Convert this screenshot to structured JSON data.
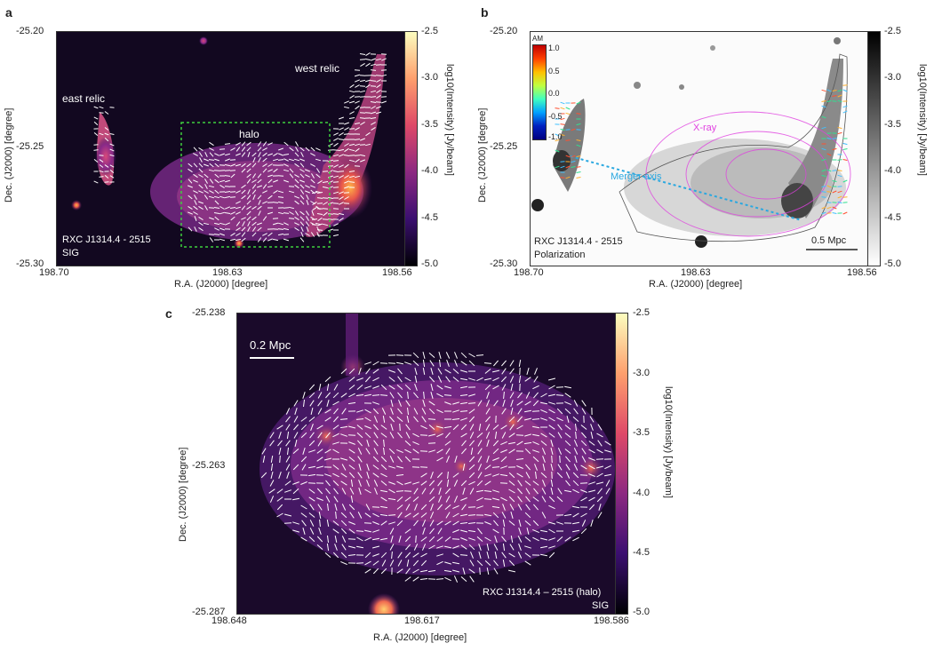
{
  "panels": {
    "a": {
      "letter": "a",
      "ra_ticks": [
        "198.70",
        "198.63",
        "198.56"
      ],
      "dec_ticks": [
        "-25.20",
        "-25.25",
        "-25.30"
      ],
      "xlabel": "R.A. (J2000) [degree]",
      "ylabel": "Dec. (J2000) [degree]",
      "cbar_ticks": [
        "-2.5",
        "-3.0",
        "-3.5",
        "-4.0",
        "-4.5",
        "-5.0"
      ],
      "cbar_label": "log10(Intensity) [Jy/beam]",
      "labels": {
        "east_relic": "east relic",
        "west_relic": "west relic",
        "halo": "halo"
      },
      "source_line1": "RXC J1314.4 - 2515",
      "source_line2": "SIG",
      "colors": {
        "box": "#3ecf3e",
        "vectors": "#ffffff"
      }
    },
    "b": {
      "letter": "b",
      "ra_ticks": [
        "198.70",
        "198.63",
        "198.56"
      ],
      "dec_ticks": [
        "-25.20",
        "-25.25",
        "-25.30"
      ],
      "xlabel": "R.A. (J2000) [degree]",
      "ylabel": "Dec. (J2000) [degree]",
      "cbar_ticks": [
        "-2.5",
        "-3.0",
        "-3.5",
        "-4.0",
        "-4.5",
        "-5.0"
      ],
      "cbar_label": "log10(Intensity) [Jy/beam]",
      "am_label": "AM",
      "am_ticks": [
        "1.0",
        "0.5",
        "0.0",
        "-0.5",
        "-1.0"
      ],
      "xray_label": "X-ray",
      "merger_label": "Merger axis",
      "scale_label": "0.5 Mpc",
      "source_line1": "RXC J1314.4 - 2515",
      "source_line2": "Polarization",
      "colors": {
        "xray": "#e040e0",
        "merger": "#2aa8e0"
      }
    },
    "c": {
      "letter": "c",
      "ra_ticks": [
        "198.648",
        "198.617",
        "198.586"
      ],
      "dec_ticks": [
        "-25.238",
        "-25.263",
        "-25.287"
      ],
      "xlabel": "R.A. (J2000) [degree]",
      "ylabel": "Dec. (J2000) [degree]",
      "cbar_ticks": [
        "-2.5",
        "-3.0",
        "-3.5",
        "-4.0",
        "-4.5",
        "-5.0"
      ],
      "cbar_label": "log10(Intensity) [Jy/beam]",
      "scale_label": "0.2 Mpc",
      "source_line1": "RXC J1314.4 – 2515 (halo)",
      "source_line2": "SIG"
    }
  }
}
